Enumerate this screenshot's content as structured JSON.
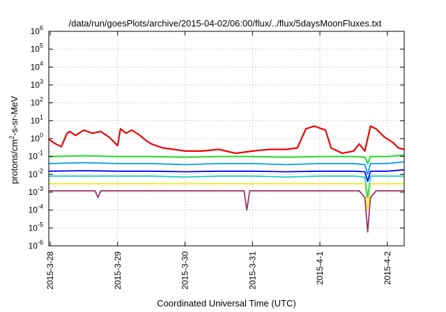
{
  "chart_data": {
    "type": "line",
    "title": "/data/run/goesPlots/archive/2015-04-02/06:00/flux/../flux/5daysMoonFluxes.txt",
    "xlabel": "Coordinated Universal Time (UTC)",
    "ylabel_parts": {
      "pre": "protons/cm",
      "sup": "2",
      "post": "-s-sr-MeV"
    },
    "y_scale": "log",
    "ylim": [
      1e-06,
      1000000.0
    ],
    "y_ticks": [
      {
        "value": 1e-06,
        "base": "10",
        "exp": "-6"
      },
      {
        "value": 1e-05,
        "base": "10",
        "exp": "-5"
      },
      {
        "value": 0.0001,
        "base": "10",
        "exp": "-4"
      },
      {
        "value": 0.001,
        "base": "10",
        "exp": "-3"
      },
      {
        "value": 0.01,
        "base": "10",
        "exp": "-2"
      },
      {
        "value": 0.1,
        "base": "10",
        "exp": "-1"
      },
      {
        "value": 1,
        "base": "10",
        "exp": "0"
      },
      {
        "value": 10.0,
        "base": "10",
        "exp": "1"
      },
      {
        "value": 100.0,
        "base": "10",
        "exp": "2"
      },
      {
        "value": 1000.0,
        "base": "10",
        "exp": "3"
      },
      {
        "value": 10000.0,
        "base": "10",
        "exp": "4"
      },
      {
        "value": 100000.0,
        "base": "10",
        "exp": "5"
      },
      {
        "value": 1000000.0,
        "base": "10",
        "exp": "6"
      }
    ],
    "xlim": [
      "2015-03-27T23:30",
      "2015-04-02T06:00"
    ],
    "x_ticks": [
      "2015-3-28",
      "2015-3-29",
      "2015-3-30",
      "2015-3-31",
      "2015-4-1",
      "2015-4-2"
    ],
    "x_tick_dates": [
      "2015-03-28",
      "2015-03-29",
      "2015-03-30",
      "2015-03-31",
      "2015-04-01",
      "2015-04-02"
    ],
    "grid": true,
    "legend": "none",
    "series": [
      {
        "color": "#ee0000",
        "x": [
          "2015-03-27T23:30",
          "2015-03-28T02:00",
          "2015-03-28T04:00",
          "2015-03-28T06:00",
          "2015-03-28T07:00",
          "2015-03-28T09:00",
          "2015-03-28T12:00",
          "2015-03-28T15:00",
          "2015-03-28T18:00",
          "2015-03-28T21:00",
          "2015-03-29T00:00",
          "2015-03-29T01:00",
          "2015-03-29T03:00",
          "2015-03-29T05:00",
          "2015-03-29T08:00",
          "2015-03-29T10:00",
          "2015-03-29T12:00",
          "2015-03-29T16:00",
          "2015-03-29T20:00",
          "2015-03-30T00:00",
          "2015-03-30T06:00",
          "2015-03-30T12:00",
          "2015-03-30T18:00",
          "2015-03-31T00:00",
          "2015-03-31T06:00",
          "2015-03-31T12:00",
          "2015-03-31T16:00",
          "2015-03-31T19:00",
          "2015-03-31T22:00",
          "2015-04-01T02:00",
          "2015-04-01T04:00",
          "2015-04-01T08:00",
          "2015-04-01T12:00",
          "2015-04-01T14:00",
          "2015-04-01T16:00",
          "2015-04-01T18:00",
          "2015-04-01T20:00",
          "2015-04-01T23:00",
          "2015-04-02T02:00",
          "2015-04-02T04:00",
          "2015-04-02T06:00"
        ],
        "y": [
          0.9,
          0.5,
          0.35,
          2.0,
          2.5,
          1.5,
          3.0,
          2.0,
          2.5,
          1.2,
          0.4,
          3.5,
          2.0,
          3.0,
          1.5,
          0.8,
          0.5,
          0.3,
          0.25,
          0.2,
          0.2,
          0.25,
          0.15,
          0.2,
          0.25,
          0.25,
          0.3,
          3.5,
          5.0,
          3.0,
          0.3,
          0.15,
          0.2,
          0.5,
          0.2,
          5.0,
          3.5,
          1.2,
          0.6,
          0.3,
          0.25
        ]
      },
      {
        "color": "#22dd22",
        "x": [
          "2015-03-27T23:30",
          "2015-03-28T12:00",
          "2015-03-29T00:00",
          "2015-03-29T12:00",
          "2015-03-30T00:00",
          "2015-03-30T12:00",
          "2015-03-31T00:00",
          "2015-03-31T12:00",
          "2015-04-01T00:00",
          "2015-04-01T12:00",
          "2015-04-01T16:00",
          "2015-04-01T17:00",
          "2015-04-01T18:00",
          "2015-04-02T00:00",
          "2015-04-02T06:00"
        ],
        "y": [
          0.1,
          0.11,
          0.1,
          0.1,
          0.09,
          0.1,
          0.1,
          0.09,
          0.1,
          0.1,
          0.09,
          0.04,
          0.1,
          0.1,
          0.12
        ]
      },
      {
        "color": "#0099ff",
        "x": [
          "2015-03-27T23:30",
          "2015-03-28T12:00",
          "2015-03-29T00:00",
          "2015-03-29T12:00",
          "2015-03-30T00:00",
          "2015-03-30T12:00",
          "2015-03-31T00:00",
          "2015-03-31T12:00",
          "2015-04-01T00:00",
          "2015-04-01T12:00",
          "2015-04-01T16:00",
          "2015-04-01T17:00",
          "2015-04-01T18:00",
          "2015-04-02T00:00",
          "2015-04-02T06:00"
        ],
        "y": [
          0.04,
          0.045,
          0.04,
          0.04,
          0.035,
          0.04,
          0.04,
          0.035,
          0.04,
          0.04,
          0.035,
          0.01,
          0.04,
          0.04,
          0.05
        ]
      },
      {
        "color": "#0000ee",
        "x": [
          "2015-03-27T23:30",
          "2015-03-28T12:00",
          "2015-03-29T00:00",
          "2015-03-29T12:00",
          "2015-03-30T00:00",
          "2015-03-30T12:00",
          "2015-03-31T00:00",
          "2015-03-31T12:00",
          "2015-04-01T00:00",
          "2015-04-01T12:00",
          "2015-04-01T16:00",
          "2015-04-01T17:00",
          "2015-04-01T18:00",
          "2015-04-02T00:00",
          "2015-04-02T06:00"
        ],
        "y": [
          0.015,
          0.016,
          0.015,
          0.015,
          0.014,
          0.015,
          0.015,
          0.014,
          0.015,
          0.015,
          0.014,
          0.004,
          0.015,
          0.015,
          0.018
        ]
      },
      {
        "color": "#00ccbb",
        "x": [
          "2015-03-27T23:30",
          "2015-03-28T12:00",
          "2015-03-29T00:00",
          "2015-03-29T12:00",
          "2015-03-30T00:00",
          "2015-03-30T12:00",
          "2015-03-31T00:00",
          "2015-03-31T12:00",
          "2015-04-01T00:00",
          "2015-04-01T12:00",
          "2015-04-01T16:00",
          "2015-04-01T17:00",
          "2015-04-01T18:00",
          "2015-04-02T00:00",
          "2015-04-02T06:00"
        ],
        "y": [
          0.008,
          0.008,
          0.008,
          0.008,
          0.007,
          0.008,
          0.008,
          0.007,
          0.008,
          0.008,
          0.007,
          0.0005,
          0.008,
          0.008,
          0.008
        ]
      },
      {
        "color": "#eeee00",
        "x": [
          "2015-03-27T23:30",
          "2015-03-28T12:00",
          "2015-03-29T00:00",
          "2015-03-29T12:00",
          "2015-03-30T00:00",
          "2015-03-30T12:00",
          "2015-03-31T00:00",
          "2015-03-31T12:00",
          "2015-04-01T00:00",
          "2015-04-01T12:00",
          "2015-04-01T16:00",
          "2015-04-01T17:00",
          "2015-04-01T18:00",
          "2015-04-02T00:00",
          "2015-04-02T06:00"
        ],
        "y": [
          0.003,
          0.003,
          0.003,
          0.003,
          0.003,
          0.003,
          0.003,
          0.003,
          0.003,
          0.003,
          0.003,
          0.0001,
          0.003,
          0.003,
          0.003
        ]
      },
      {
        "color": "#993366",
        "x": [
          "2015-03-27T23:30",
          "2015-03-28T12:00",
          "2015-03-28T16:00",
          "2015-03-28T17:00",
          "2015-03-28T18:00",
          "2015-03-29T12:00",
          "2015-03-30T12:00",
          "2015-03-30T21:00",
          "2015-03-30T22:00",
          "2015-03-30T23:00",
          "2015-03-31T12:00",
          "2015-04-01T00:00",
          "2015-04-01T14:00",
          "2015-04-01T16:00",
          "2015-04-01T17:00",
          "2015-04-01T18:00",
          "2015-04-01T20:00",
          "2015-04-02T06:00"
        ],
        "y": [
          0.0012,
          0.0012,
          0.0012,
          0.0005,
          0.0012,
          0.0012,
          0.0012,
          0.0012,
          0.0001,
          0.0012,
          0.0012,
          0.0012,
          0.0012,
          0.0005,
          6e-06,
          0.0005,
          0.0012,
          0.0012
        ]
      }
    ]
  }
}
